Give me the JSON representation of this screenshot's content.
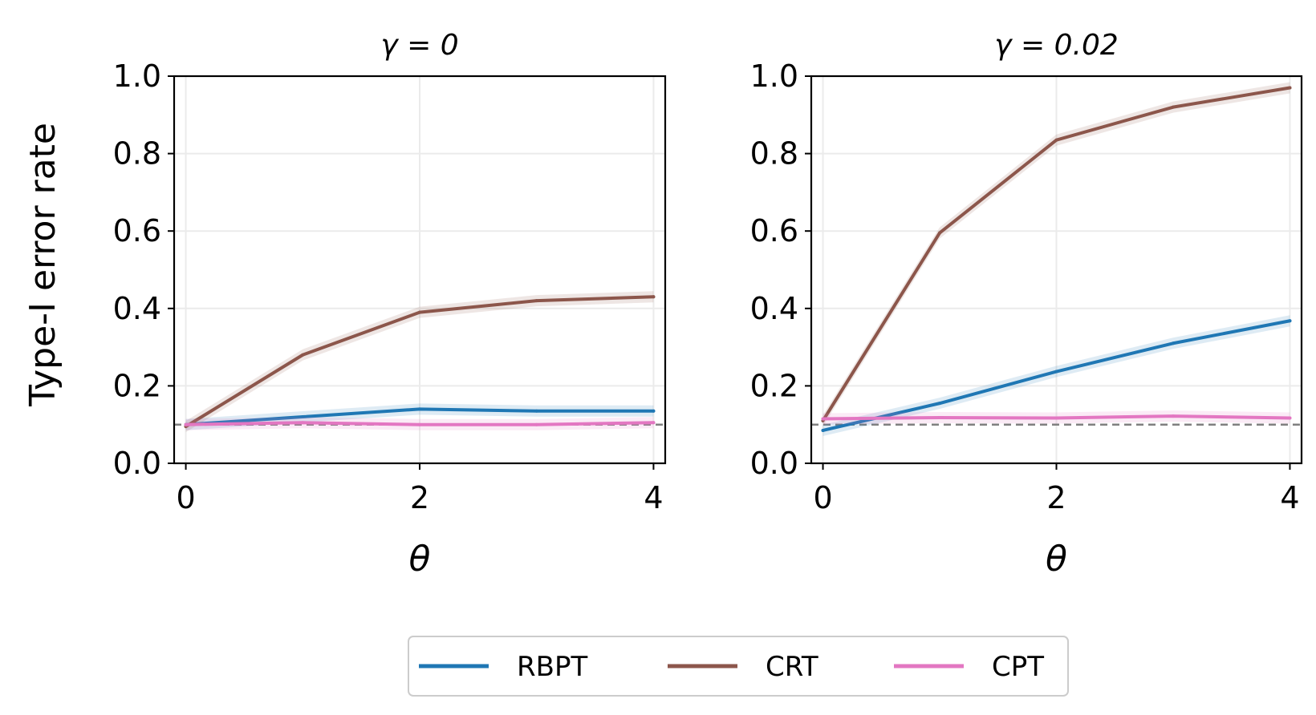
{
  "figure": {
    "ylabel": "Type-I error rate",
    "legend": {
      "placement": "bottom-center",
      "entries": [
        {
          "label": "RBPT",
          "color": "#1f77b4"
        },
        {
          "label": "CRT",
          "color": "#8c564b"
        },
        {
          "label": "CPT",
          "color": "#e377c2"
        }
      ]
    },
    "reference_line": {
      "y": 0.1,
      "color": "#808080",
      "style": "dashed"
    }
  },
  "chart_data": [
    {
      "type": "line",
      "title": "γ = 0",
      "xlabel": "θ",
      "ylabel": "Type-I error rate",
      "xlim": [
        0,
        4
      ],
      "ylim": [
        0,
        1.0
      ],
      "x_ticks": [
        "0",
        "2",
        "4"
      ],
      "y_ticks": [
        "0.0",
        "0.2",
        "0.4",
        "0.6",
        "0.8",
        "1.0"
      ],
      "grid": true,
      "x": [
        0,
        1,
        2,
        3,
        4
      ],
      "series": [
        {
          "name": "RBPT",
          "color": "#1f77b4",
          "values": [
            0.1,
            0.12,
            0.14,
            0.135,
            0.135
          ]
        },
        {
          "name": "CRT",
          "color": "#8c564b",
          "values": [
            0.095,
            0.28,
            0.39,
            0.42,
            0.43
          ]
        },
        {
          "name": "CPT",
          "color": "#e377c2",
          "values": [
            0.1,
            0.105,
            0.1,
            0.1,
            0.105
          ]
        }
      ]
    },
    {
      "type": "line",
      "title": "γ = 0.02",
      "xlabel": "θ",
      "ylabel": "",
      "xlim": [
        0,
        4
      ],
      "ylim": [
        0,
        1.0
      ],
      "x_ticks": [
        "0",
        "2",
        "4"
      ],
      "y_ticks": [
        "0.0",
        "0.2",
        "0.4",
        "0.6",
        "0.8",
        "1.0"
      ],
      "grid": true,
      "x": [
        0,
        1,
        2,
        3,
        4
      ],
      "series": [
        {
          "name": "RBPT",
          "color": "#1f77b4",
          "values": [
            0.085,
            0.155,
            0.237,
            0.31,
            0.368
          ]
        },
        {
          "name": "CRT",
          "color": "#8c564b",
          "values": [
            0.11,
            0.595,
            0.835,
            0.92,
            0.97
          ]
        },
        {
          "name": "CPT",
          "color": "#e377c2",
          "values": [
            0.115,
            0.118,
            0.117,
            0.122,
            0.117
          ]
        }
      ]
    }
  ]
}
